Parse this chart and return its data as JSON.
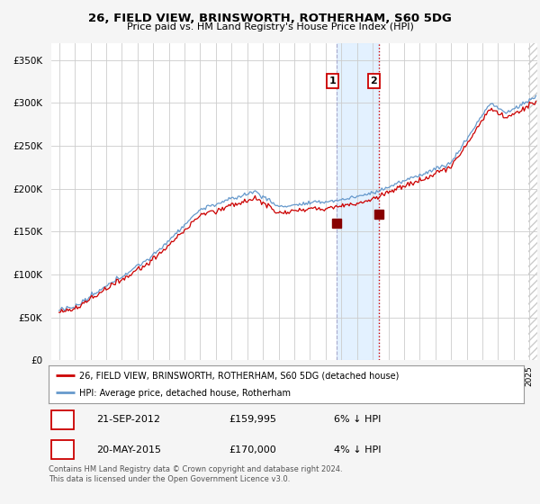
{
  "title": "26, FIELD VIEW, BRINSWORTH, ROTHERHAM, S60 5DG",
  "subtitle": "Price paid vs. HM Land Registry's House Price Index (HPI)",
  "legend_line1": "26, FIELD VIEW, BRINSWORTH, ROTHERHAM, S60 5DG (detached house)",
  "legend_line2": "HPI: Average price, detached house, Rotherham",
  "footnote": "Contains HM Land Registry data © Crown copyright and database right 2024.\nThis data is licensed under the Open Government Licence v3.0.",
  "transaction1_label": "1",
  "transaction1_date": "21-SEP-2012",
  "transaction1_price": "£159,995",
  "transaction1_hpi": "6% ↓ HPI",
  "transaction2_label": "2",
  "transaction2_date": "20-MAY-2015",
  "transaction2_price": "£170,000",
  "transaction2_hpi": "4% ↓ HPI",
  "marker1_x": 2012.72,
  "marker1_y": 159995,
  "marker2_x": 2015.38,
  "marker2_y": 170000,
  "red_color": "#cc0000",
  "blue_color": "#6699cc",
  "highlight_color": "#ddeeff",
  "vline1_color": "#aaaacc",
  "vline1_style": "dashed",
  "vline2_color": "#cc0000",
  "vline2_style": "dotted",
  "background_color": "#f5f5f5",
  "plot_bg_color": "#ffffff",
  "ylim": [
    0,
    370000
  ],
  "xlim": [
    1994.5,
    2025.5
  ],
  "yticks": [
    0,
    50000,
    100000,
    150000,
    200000,
    250000,
    300000,
    350000
  ]
}
